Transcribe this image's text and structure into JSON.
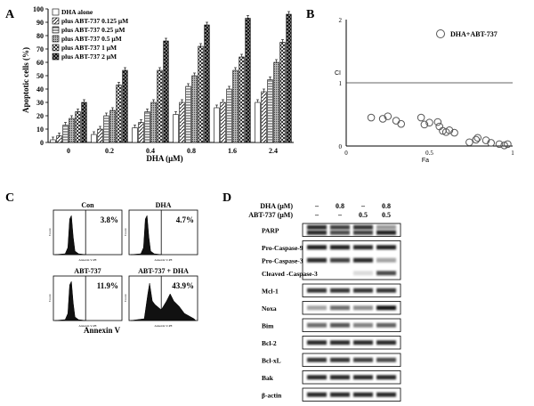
{
  "panels": {
    "A": {
      "letter": "A"
    },
    "B": {
      "letter": "B"
    },
    "C": {
      "letter": "C"
    },
    "D": {
      "letter": "D"
    }
  },
  "chart_data": [
    {
      "panel": "A",
      "type": "bar",
      "xlabel": "DHA (μM)",
      "ylabel": "Apoptotic cells (%)",
      "ylim": [
        0,
        100
      ],
      "yticks": [
        0,
        10,
        20,
        30,
        40,
        50,
        60,
        70,
        80,
        90,
        100
      ],
      "categories": [
        "0",
        "0.2",
        "0.4",
        "0.8",
        "1.6",
        "2.4"
      ],
      "legend_position": "top-left",
      "series": [
        {
          "name": "DHA  alone",
          "pattern": "white",
          "values": [
            2,
            6,
            11,
            21,
            26,
            30
          ]
        },
        {
          "name": "plus ABT-737 0.125 μM",
          "pattern": "diag-sparse",
          "values": [
            5,
            10,
            15,
            30,
            30,
            38
          ]
        },
        {
          "name": "plus ABT-737 0.25 μM",
          "pattern": "hlines",
          "values": [
            13,
            20,
            23,
            42,
            40,
            47
          ]
        },
        {
          "name": "plus ABT-737 0.5 μM",
          "pattern": "dense",
          "values": [
            18,
            24,
            30,
            50,
            54,
            60
          ]
        },
        {
          "name": "plus ABT-737 1 μM",
          "pattern": "check",
          "values": [
            23,
            43,
            54,
            72,
            64,
            75
          ]
        },
        {
          "name": "plus ABT-737 2 μM",
          "pattern": "dark-check",
          "values": [
            30,
            54,
            76,
            88,
            93,
            96
          ]
        }
      ]
    },
    {
      "panel": "B",
      "type": "scatter",
      "xlabel": "Fa",
      "ylabel": "CI",
      "xlim": [
        0,
        1
      ],
      "ylim": [
        0,
        2
      ],
      "xticks": [
        "0",
        "0.5",
        "1"
      ],
      "yticks": [
        "0",
        "1",
        "2"
      ],
      "reference_line_y": 1,
      "legend": "DHA+ABT-737",
      "points": [
        [
          0.15,
          0.45
        ],
        [
          0.22,
          0.43
        ],
        [
          0.25,
          0.47
        ],
        [
          0.3,
          0.4
        ],
        [
          0.33,
          0.35
        ],
        [
          0.45,
          0.45
        ],
        [
          0.47,
          0.34
        ],
        [
          0.5,
          0.37
        ],
        [
          0.55,
          0.38
        ],
        [
          0.56,
          0.31
        ],
        [
          0.58,
          0.24
        ],
        [
          0.62,
          0.25
        ],
        [
          0.6,
          0.22
        ],
        [
          0.65,
          0.21
        ],
        [
          0.74,
          0.06
        ],
        [
          0.78,
          0.1
        ],
        [
          0.79,
          0.13
        ],
        [
          0.84,
          0.09
        ],
        [
          0.87,
          0.05
        ],
        [
          0.92,
          0.03
        ],
        [
          0.95,
          0.01
        ],
        [
          0.97,
          0.03
        ]
      ]
    }
  ],
  "flow": {
    "axis_y": "Count",
    "axis_x": "Annexin V-PE",
    "xlabel_bold": "Annexin V",
    "histograms": [
      {
        "title": "Con",
        "pct": "3.8%",
        "shape": "narrow"
      },
      {
        "title": "DHA",
        "pct": "4.7%",
        "shape": "narrow"
      },
      {
        "title": "ABT-737",
        "pct": "11.9%",
        "shape": "narrow"
      },
      {
        "title": "ABT-737 + DHA",
        "pct": "43.9%",
        "shape": "wide"
      }
    ]
  },
  "western": {
    "header": {
      "dha_label": "DHA  (μM)",
      "abt_label": "ABT-737  (μM)",
      "dha_values": [
        "–",
        "0.8",
        "–",
        "0.8"
      ],
      "abt_values": [
        "–",
        "–",
        "0.5",
        "0.5"
      ]
    },
    "blots": [
      {
        "group": 1,
        "label": "PARP",
        "bands": [
          [
            0.85,
            0.85
          ],
          [
            0.75,
            0.7
          ],
          [
            0.8,
            0.75
          ],
          [
            0.35,
            0.9
          ]
        ]
      },
      {
        "group": 2,
        "label": "Pro-Caspase-9",
        "bands": [
          [
            0.9
          ],
          [
            0.9
          ],
          [
            0.85
          ],
          [
            0.9
          ]
        ]
      },
      {
        "group": 2,
        "label": "Pro-Caspase-3",
        "bands": [
          [
            0.85
          ],
          [
            0.75
          ],
          [
            0.85
          ],
          [
            0.3
          ]
        ]
      },
      {
        "group": 2,
        "label": "Cleaved  -Caspase-3",
        "bands": [
          [
            0.0
          ],
          [
            0.0
          ],
          [
            0.05
          ],
          [
            0.7
          ]
        ]
      },
      {
        "group": 3,
        "label": "Mcl-1",
        "bands": [
          [
            0.8
          ],
          [
            0.8
          ],
          [
            0.8
          ],
          [
            0.8
          ]
        ]
      },
      {
        "group": 4,
        "label": "Noxa",
        "bands": [
          [
            0.3
          ],
          [
            0.55
          ],
          [
            0.4
          ],
          [
            0.95
          ]
        ]
      },
      {
        "group": 5,
        "label": "Bim",
        "bands": [
          [
            0.55
          ],
          [
            0.65
          ],
          [
            0.45
          ],
          [
            0.6
          ]
        ]
      },
      {
        "group": 6,
        "label": "Bcl-2",
        "bands": [
          [
            0.85
          ],
          [
            0.85
          ],
          [
            0.85
          ],
          [
            0.85
          ]
        ]
      },
      {
        "group": 7,
        "label": "Bcl-xL",
        "bands": [
          [
            0.8
          ],
          [
            0.8
          ],
          [
            0.75
          ],
          [
            0.7
          ]
        ]
      },
      {
        "group": 8,
        "label": "Bak",
        "bands": [
          [
            0.85
          ],
          [
            0.85
          ],
          [
            0.85
          ],
          [
            0.85
          ]
        ]
      },
      {
        "group": 9,
        "label": "β-actin",
        "bands": [
          [
            0.85
          ],
          [
            0.85
          ],
          [
            0.85
          ],
          [
            0.85
          ]
        ]
      }
    ]
  }
}
